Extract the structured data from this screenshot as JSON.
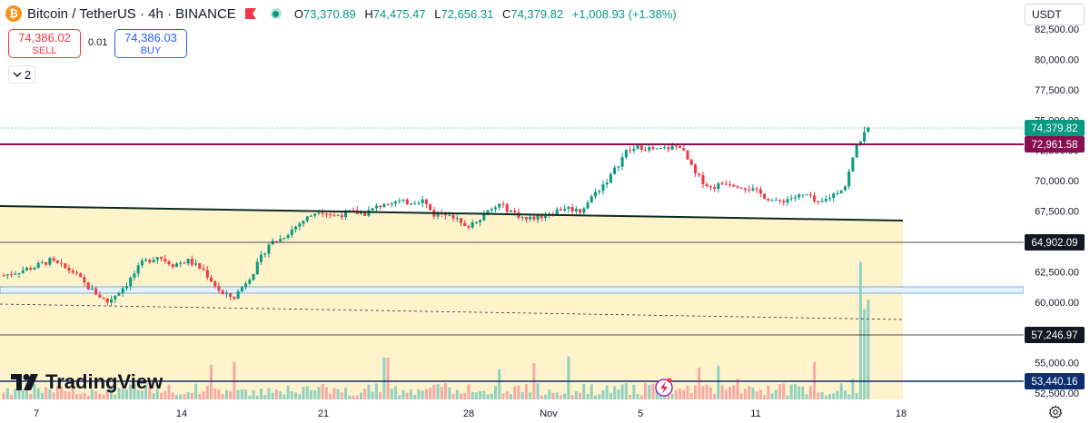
{
  "header": {
    "coin_symbol": "₿",
    "title": "Bitcoin / TetherUS · 4h · BINANCE",
    "ohlc": {
      "o_key": "O",
      "o": "73,370.89",
      "h_key": "H",
      "h": "74,475.47",
      "l_key": "L",
      "l": "72,656.31",
      "c_key": "C",
      "c": "74,379.82",
      "change": "+1,008.93 (+1.38%)"
    }
  },
  "trade": {
    "sell_price": "74,386.02",
    "sell_label": "SELL",
    "spread": "0.01",
    "buy_price": "74,386.03",
    "buy_label": "BUY"
  },
  "collapse_count": "2",
  "currency_selector": "USDT",
  "logo_text": "TradingView",
  "colors": {
    "up": "#089981",
    "down": "#f23645",
    "zone_fill": "#fff3cc",
    "resistance": "#880e4f",
    "trendline": "#0d2b20",
    "bottom_line": "#0d2e6e"
  },
  "chart_data": {
    "type": "candlestick",
    "symbol": "BTCUSDT",
    "interval": "4h",
    "y_axis": {
      "range": [
        52500,
        82500
      ],
      "ticks": [
        "82,500.00",
        "80,000.00",
        "77,500.00",
        "75,000.00",
        "72,500.00",
        "70,000.00",
        "67,500.00",
        "65,000.00",
        "62,500.00",
        "60,000.00",
        "57,500.00",
        "55,000.00",
        "52,500.00"
      ]
    },
    "x_axis": {
      "ticks": [
        "7",
        "14",
        "21",
        "28",
        "Nov",
        "5",
        "11",
        "18"
      ]
    },
    "price_labels": [
      {
        "value": "74,379.82",
        "style": "last-price"
      },
      {
        "value": "72,961.58",
        "style": "resistance"
      },
      {
        "value": "64,902.09",
        "style": "level"
      },
      {
        "value": "57,246.97",
        "style": "level"
      },
      {
        "value": "53,440.16",
        "style": "support"
      }
    ],
    "close_path": [
      [
        0,
        62200
      ],
      [
        8,
        62900
      ],
      [
        12,
        63400
      ],
      [
        18,
        62500
      ],
      [
        22,
        61200
      ],
      [
        27,
        60000
      ],
      [
        32,
        61500
      ],
      [
        36,
        63200
      ],
      [
        40,
        63800
      ],
      [
        44,
        63100
      ],
      [
        48,
        63400
      ],
      [
        52,
        62600
      ],
      [
        57,
        60600
      ],
      [
        60,
        60400
      ],
      [
        65,
        62500
      ],
      [
        69,
        64800
      ],
      [
        72,
        65200
      ],
      [
        77,
        66500
      ],
      [
        82,
        67600
      ],
      [
        86,
        67100
      ],
      [
        90,
        67400
      ],
      [
        94,
        67300
      ],
      [
        100,
        68300
      ],
      [
        104,
        68200
      ],
      [
        109,
        68400
      ],
      [
        112,
        67200
      ],
      [
        116,
        67400
      ],
      [
        120,
        66100
      ],
      [
        124,
        67000
      ],
      [
        129,
        68000
      ],
      [
        132,
        67500
      ],
      [
        136,
        66800
      ],
      [
        141,
        67200
      ],
      [
        146,
        67800
      ],
      [
        150,
        67500
      ],
      [
        154,
        69000
      ],
      [
        158,
        70400
      ],
      [
        162,
        72400
      ],
      [
        166,
        72800
      ],
      [
        170,
        72500
      ],
      [
        176,
        72900
      ],
      [
        180,
        70500
      ],
      [
        184,
        69400
      ],
      [
        188,
        69900
      ],
      [
        193,
        69500
      ],
      [
        197,
        68900
      ],
      [
        201,
        68200
      ],
      [
        205,
        68600
      ],
      [
        209,
        68800
      ],
      [
        212,
        68000
      ],
      [
        216,
        68900
      ],
      [
        219,
        69600
      ],
      [
        222,
        72900
      ],
      [
        225,
        74379.82
      ]
    ]
  }
}
